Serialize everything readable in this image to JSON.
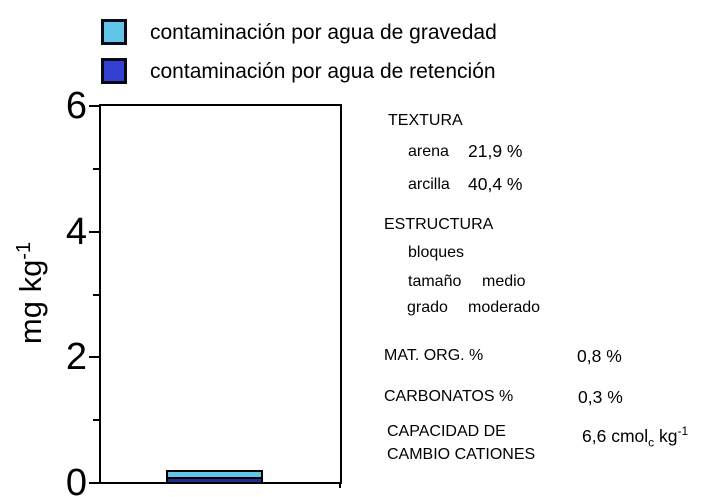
{
  "legend": {
    "items": [
      {
        "label": "contaminación por agua de gravedad",
        "color": "#62c5e8"
      },
      {
        "label": "contaminación por agua de retención",
        "color": "#3340d2"
      }
    ]
  },
  "chart_data": {
    "type": "bar",
    "stacked": true,
    "categories": [
      ""
    ],
    "series": [
      {
        "name": "contaminación por agua de retención",
        "values": [
          0.08
        ],
        "color": "#1e2d8f",
        "stack_position": "bottom"
      },
      {
        "name": "contaminación por agua de gravedad",
        "values": [
          0.11
        ],
        "color": "#62c5e8",
        "stack_position": "top"
      }
    ],
    "title": "",
    "xlabel": "",
    "ylabel": {
      "text": "mg kg",
      "sup": "-1"
    },
    "ylim": [
      0,
      6
    ],
    "yticks_major": [
      0,
      2,
      4,
      6
    ],
    "yticks_minor": [
      1,
      3,
      5
    ],
    "grid": false,
    "frame": "box",
    "legend_position": "top-left",
    "axis_color": "#000000"
  },
  "info_panel": {
    "textura": {
      "title": "TEXTURA",
      "rows": [
        {
          "label": "arena",
          "value": "21,9 %"
        },
        {
          "label": "arcilla",
          "value": "40,4 %"
        }
      ]
    },
    "estructura": {
      "title": "ESTRUCTURA",
      "rows": [
        {
          "label": "bloques",
          "value": ""
        },
        {
          "label": "tamaño",
          "value": "medio"
        },
        {
          "label": "grado",
          "value": "moderado"
        }
      ]
    },
    "mat_org": {
      "label": "MAT. ORG. %",
      "value": "0,8 %"
    },
    "carbonatos": {
      "label": "CARBONATOS %",
      "value": "0,3 %"
    },
    "capacidad": {
      "label_line1": "CAPACIDAD DE",
      "label_line2": "CAMBIO CATIONES",
      "value_pre": "6,6 cmol",
      "value_sub": "c",
      "value_mid": " kg",
      "value_sup": "-1"
    }
  }
}
